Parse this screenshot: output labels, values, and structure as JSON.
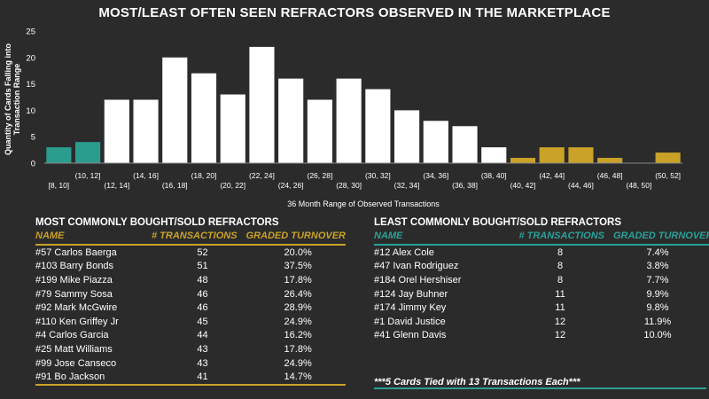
{
  "title": "MOST/LEAST OFTEN SEEN REFRACTORS OBSERVED IN THE MARKETPLACE",
  "colors": {
    "background": "#2b2b2b",
    "bar_default": "#ffffff",
    "bar_least": "#2a9d8f",
    "bar_most": "#c9a227",
    "teal": "#2aa198",
    "gold": "#c9a227"
  },
  "chart_data": {
    "type": "bar",
    "title": "MOST/LEAST OFTEN SEEN REFRACTORS OBSERVED IN THE MARKETPLACE",
    "xlabel": "36 Month Range of Observed Transactions",
    "ylabel": "Quantity of Cards Falling into Transaction Range",
    "ylim": [
      0,
      25
    ],
    "yticks": [
      0,
      5,
      10,
      15,
      20,
      25
    ],
    "grid": false,
    "categories": [
      "[8, 10]",
      "(10, 12]",
      "(12, 14]",
      "(14, 16]",
      "(16, 18]",
      "(18, 20]",
      "(20, 22]",
      "(22, 24]",
      "(24, 26]",
      "(26, 28]",
      "(28, 30]",
      "(30, 32]",
      "(32, 34]",
      "(34, 36]",
      "(36, 38]",
      "(38, 40]",
      "(40, 42]",
      "(42, 44]",
      "(44, 46]",
      "(46, 48]",
      "(48, 50]",
      "(50, 52]"
    ],
    "values": [
      3,
      4,
      12,
      12,
      20,
      17,
      13,
      22,
      16,
      12,
      16,
      14,
      10,
      8,
      7,
      3,
      1,
      3,
      3,
      1,
      0,
      2
    ],
    "bar_groups": [
      "least",
      "least",
      "mid",
      "mid",
      "mid",
      "mid",
      "mid",
      "mid",
      "mid",
      "mid",
      "mid",
      "mid",
      "mid",
      "mid",
      "mid",
      "mid",
      "most",
      "most",
      "most",
      "most",
      "most",
      "most"
    ]
  },
  "most": {
    "heading": "MOST COMMONLY BOUGHT/SOLD REFRACTORS",
    "headers": [
      "NAME",
      "# TRANSACTIONS",
      "GRADED TURNOVER"
    ],
    "rows": [
      [
        "#57 Carlos Baerga",
        "52",
        "20.0%"
      ],
      [
        "#103 Barry Bonds",
        "51",
        "37.5%"
      ],
      [
        "#199 Mike Piazza",
        "48",
        "17.8%"
      ],
      [
        "#79 Sammy Sosa",
        "46",
        "26.4%"
      ],
      [
        "#92 Mark McGwire",
        "46",
        "28.9%"
      ],
      [
        "#110 Ken Griffey Jr",
        "45",
        "24.9%"
      ],
      [
        "#4 Carlos Garcia",
        "44",
        "16.2%"
      ],
      [
        "#25 Matt Williams",
        "43",
        "17.8%"
      ],
      [
        "#99 Jose Canseco",
        "43",
        "24.9%"
      ],
      [
        "#91 Bo Jackson",
        "41",
        "14.7%"
      ]
    ]
  },
  "least": {
    "heading": "LEAST COMMONLY BOUGHT/SOLD REFRACTORS",
    "headers": [
      "NAME",
      "# TRANSACTIONS",
      "GRADED TURNOVER"
    ],
    "rows": [
      [
        "#12 Alex Cole",
        "8",
        "7.4%"
      ],
      [
        "#47 Ivan Rodriguez",
        "8",
        "3.8%"
      ],
      [
        "#184 Orel Hershiser",
        "8",
        "7.7%"
      ],
      [
        "#124 Jay Buhner",
        "11",
        "9.9%"
      ],
      [
        "#174 Jimmy Key",
        "11",
        "9.8%"
      ],
      [
        "#1 David Justice",
        "12",
        "11.9%"
      ],
      [
        "#41 Glenn Davis",
        "12",
        "10.0%"
      ]
    ],
    "note": "***5 Cards Tied with 13 Transactions Each***"
  }
}
